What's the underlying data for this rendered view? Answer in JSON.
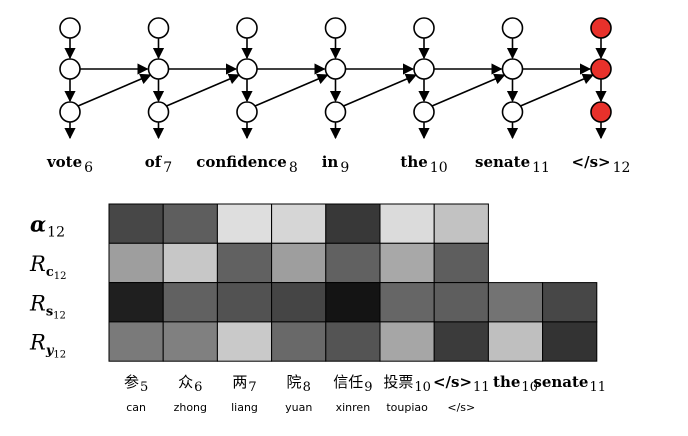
{
  "rnn": {
    "columns": [
      {
        "word": "vote",
        "idx": "6",
        "highlight": false
      },
      {
        "word": "of",
        "idx": "7",
        "highlight": false
      },
      {
        "word": "confidence",
        "idx": "8",
        "highlight": false
      },
      {
        "word": "in",
        "idx": "9",
        "highlight": false
      },
      {
        "word": "the",
        "idx": "10",
        "highlight": false
      },
      {
        "word": "senate",
        "idx": "11",
        "highlight": false
      },
      {
        "word": "</s>",
        "idx": "12",
        "highlight": true
      }
    ],
    "node_fill": "#ffffff",
    "highlight_fill": "#e8312b",
    "stroke": "#000000"
  },
  "heatmap": {
    "rows": [
      {
        "sym": "α",
        "sub": "12",
        "bold_sub": "",
        "style": "alpha",
        "values": [
          0.28,
          0.37,
          0.87,
          0.84,
          0.22,
          0.86,
          0.76
        ]
      },
      {
        "sym": "R",
        "sub": "c",
        "sub2": "12",
        "style": "R",
        "values": [
          0.62,
          0.78,
          0.38,
          0.62,
          0.38,
          0.66,
          0.37
        ]
      },
      {
        "sym": "R",
        "sub": "s",
        "sub2": "12",
        "style": "R",
        "values": [
          0.12,
          0.38,
          0.32,
          0.27,
          0.08,
          0.4,
          0.37,
          0.45,
          0.28
        ]
      },
      {
        "sym": "R",
        "sub": "y",
        "sub2": "12",
        "style": "Ry",
        "values": [
          0.48,
          0.5,
          0.79,
          0.41,
          0.33,
          0.65,
          0.23,
          0.75,
          0.2
        ]
      }
    ],
    "columns": [
      {
        "word": "参",
        "idx": "5",
        "roman": "can"
      },
      {
        "word": "众",
        "idx": "6",
        "roman": "zhong"
      },
      {
        "word": "两",
        "idx": "7",
        "roman": "liang"
      },
      {
        "word": "院",
        "idx": "8",
        "roman": "yuan"
      },
      {
        "word": "信任",
        "idx": "9",
        "roman": "xinren"
      },
      {
        "word": "投票",
        "idx": "10",
        "roman": "toupiao"
      },
      {
        "word": "</s>",
        "idx": "11",
        "roman": "</s>"
      },
      {
        "word": "the",
        "idx": "10",
        "roman": ""
      },
      {
        "word": "senate",
        "idx": "11",
        "roman": ""
      }
    ]
  }
}
